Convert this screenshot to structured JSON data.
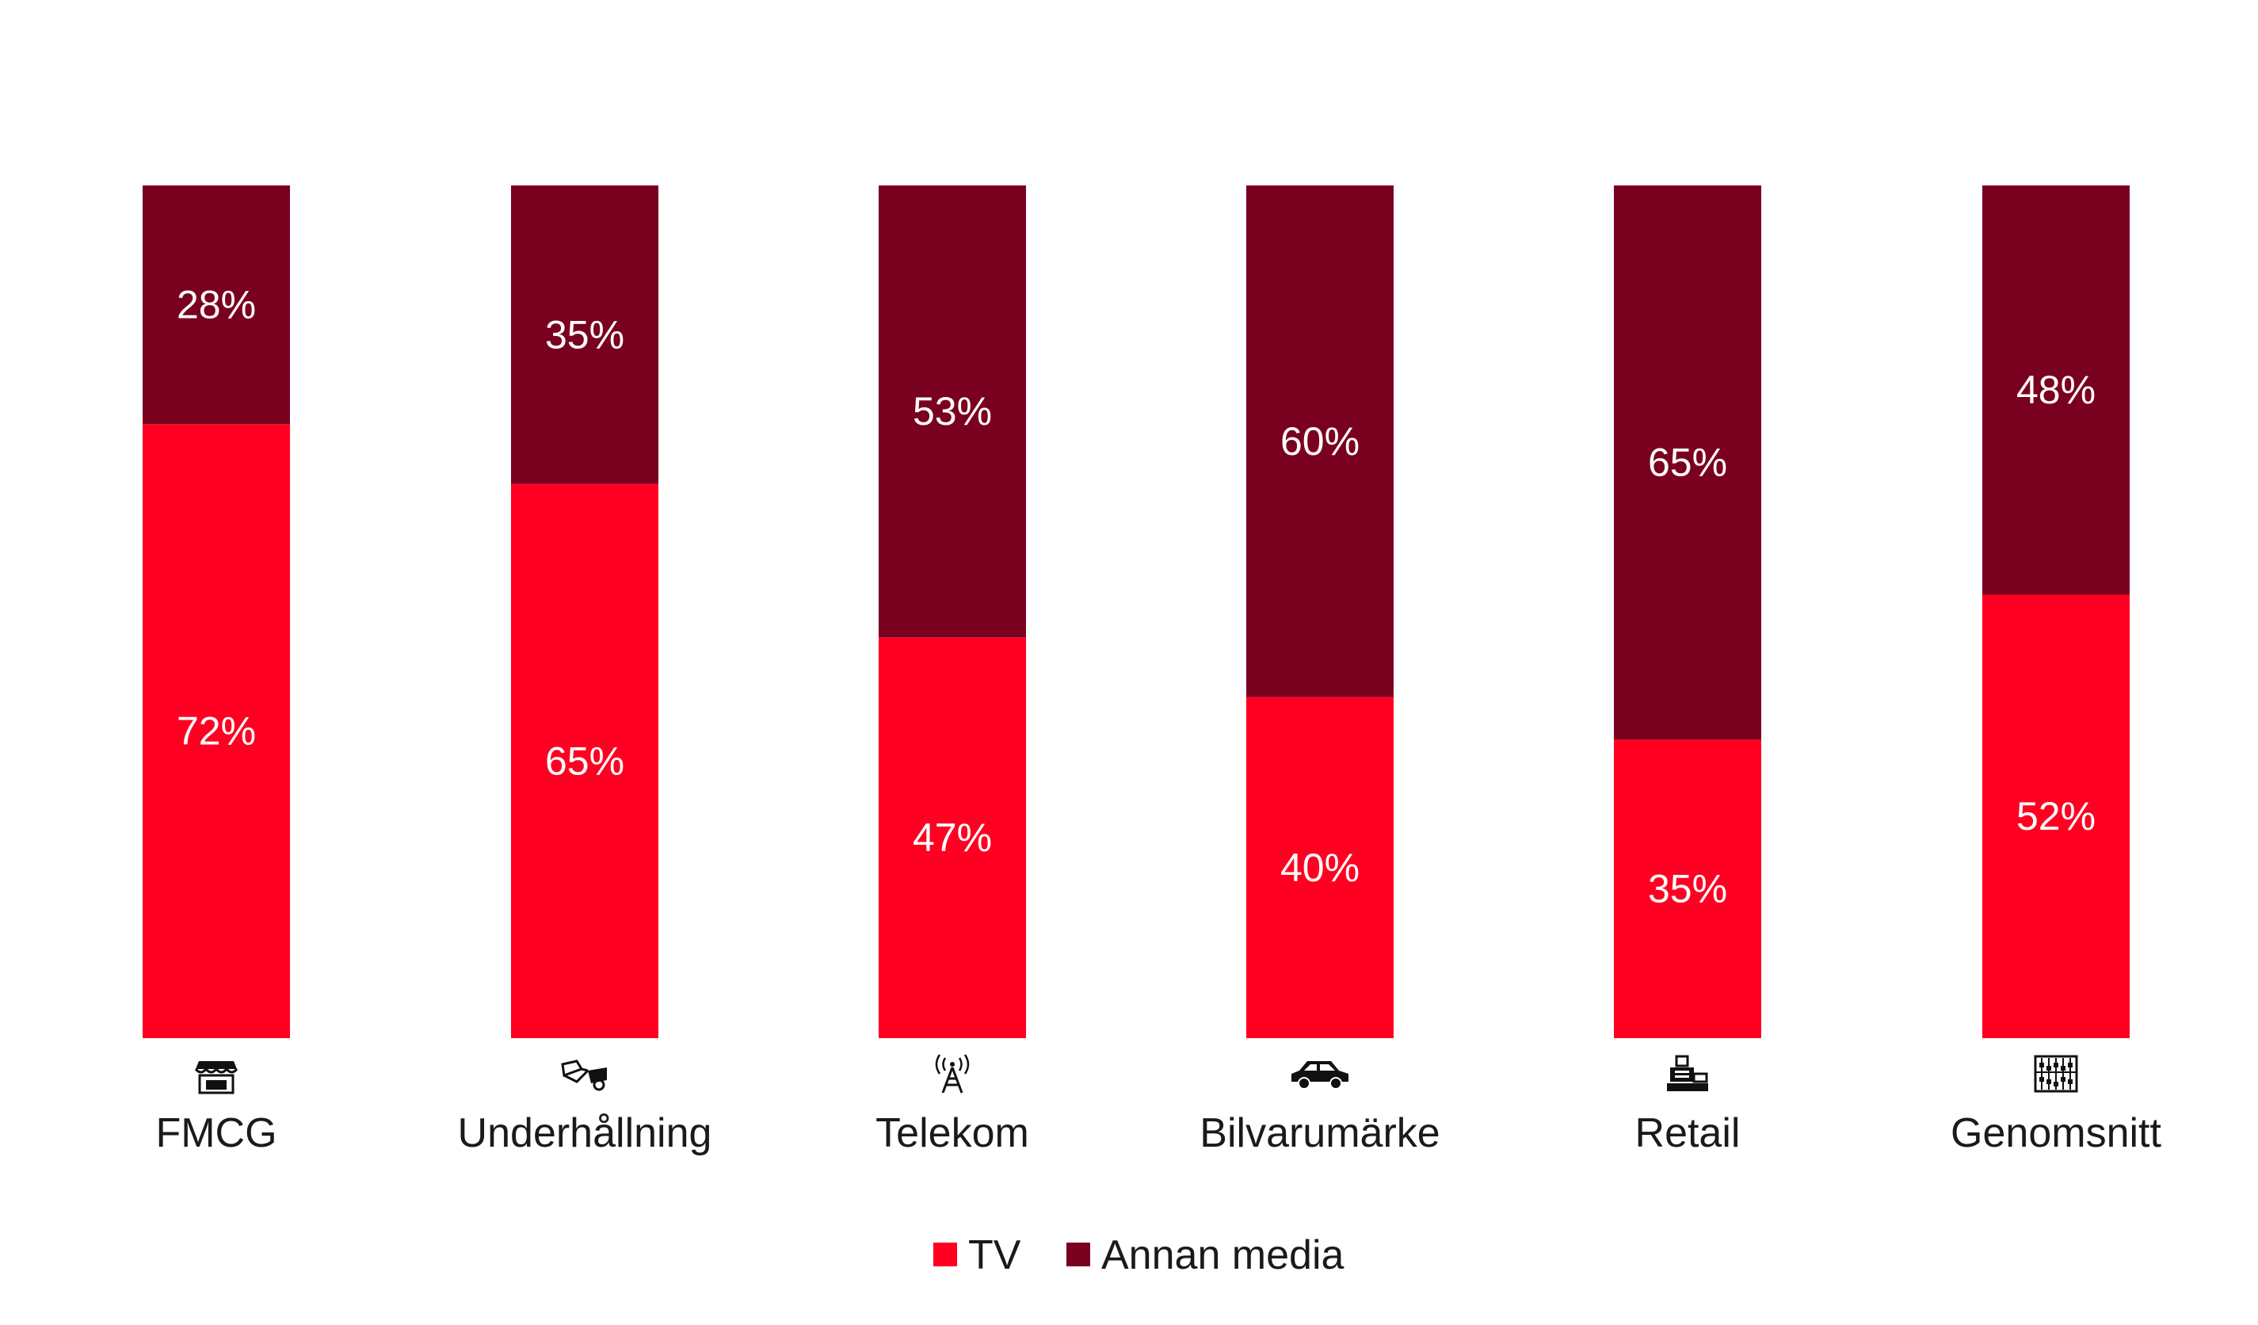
{
  "chart_data": {
    "type": "bar",
    "stacked": true,
    "normalized": true,
    "ylim": [
      0,
      100
    ],
    "categories": [
      "FMCG",
      "Underhållning",
      "Telekom",
      "Bilvarumärke",
      "Retail",
      "Genomsnitt"
    ],
    "category_icons": [
      "store-icon",
      "3d-glasses-icon",
      "antenna-tower-icon",
      "car-icon",
      "cash-register-icon",
      "abacus-icon"
    ],
    "series": [
      {
        "name": "TV",
        "color": "#ff0022",
        "values": [
          72,
          65,
          47,
          40,
          35,
          52
        ],
        "labels": [
          "72%",
          "65%",
          "47%",
          "40%",
          "35%",
          "52%"
        ]
      },
      {
        "name": "Annan media",
        "color": "#7a0020",
        "values": [
          28,
          35,
          53,
          60,
          65,
          48
        ],
        "labels": [
          "28%",
          "35%",
          "53%",
          "60%",
          "65%",
          "48%"
        ]
      }
    ],
    "legend": {
      "position": "bottom-center"
    },
    "grid": false
  }
}
